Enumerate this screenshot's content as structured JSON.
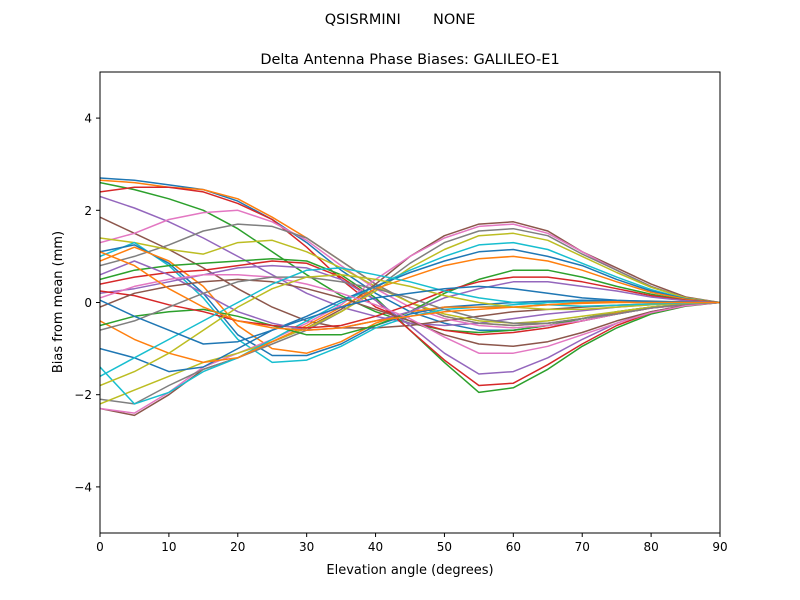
{
  "chart_data": {
    "type": "line",
    "suptitle": "QSISRMINI       NONE",
    "title": "Delta Antenna Phase Biases: GALILEO-E1",
    "xlabel": "Elevation angle (degrees)",
    "ylabel": "Bias from mean (mm)",
    "xlim": [
      0,
      90
    ],
    "ylim": [
      -5,
      5
    ],
    "xticks": [
      0,
      10,
      20,
      30,
      40,
      50,
      60,
      70,
      80,
      90
    ],
    "xtick_labels": [
      "0",
      "10",
      "20",
      "30",
      "40",
      "50",
      "60",
      "70",
      "80",
      "90"
    ],
    "yticks": [
      -4,
      -2,
      0,
      2,
      4
    ],
    "ytick_labels": [
      "−4",
      "−2",
      "0",
      "2",
      "4"
    ],
    "grid": false,
    "colors": [
      "#1f77b4",
      "#ff7f0e",
      "#2ca02c",
      "#d62728",
      "#9467bd",
      "#8c564b",
      "#e377c2",
      "#7f7f7f",
      "#bcbd22",
      "#17becf"
    ],
    "x": [
      0,
      5,
      10,
      15,
      20,
      25,
      30,
      35,
      40,
      45,
      50,
      55,
      60,
      65,
      70,
      75,
      80,
      85,
      90
    ],
    "series": [
      {
        "values": [
          2.7,
          2.65,
          2.55,
          2.45,
          2.2,
          1.8,
          1.3,
          0.7,
          0.2,
          -0.2,
          -0.45,
          -0.6,
          -0.6,
          -0.5,
          -0.4,
          -0.25,
          -0.12,
          -0.05,
          0
        ]
      },
      {
        "values": [
          2.65,
          2.6,
          2.5,
          2.45,
          2.25,
          1.85,
          1.4,
          0.9,
          0.4,
          0,
          -0.3,
          -0.45,
          -0.5,
          -0.45,
          -0.35,
          -0.22,
          -0.1,
          -0.04,
          0
        ]
      },
      {
        "values": [
          2.6,
          2.45,
          2.25,
          2.0,
          1.6,
          1.1,
          0.6,
          0.15,
          -0.2,
          -0.45,
          -0.6,
          -0.65,
          -0.6,
          -0.5,
          -0.35,
          -0.2,
          -0.1,
          -0.04,
          0
        ]
      },
      {
        "values": [
          2.4,
          2.5,
          2.5,
          2.4,
          2.15,
          1.8,
          1.2,
          0.5,
          -0.1,
          -0.4,
          -0.6,
          -0.7,
          -0.65,
          -0.55,
          -0.4,
          -0.25,
          -0.12,
          -0.05,
          0
        ]
      },
      {
        "values": [
          2.3,
          2.05,
          1.75,
          1.4,
          1.0,
          0.6,
          0.2,
          -0.1,
          -0.3,
          -0.45,
          -0.5,
          -0.45,
          -0.35,
          -0.25,
          -0.18,
          -0.1,
          -0.05,
          -0.02,
          0
        ]
      },
      {
        "values": [
          1.85,
          1.5,
          1.15,
          0.75,
          0.3,
          -0.1,
          -0.4,
          -0.55,
          -0.55,
          -0.5,
          -0.4,
          -0.3,
          -0.2,
          -0.15,
          -0.1,
          -0.06,
          -0.03,
          -0.01,
          0
        ]
      },
      {
        "values": [
          1.3,
          1.5,
          1.8,
          1.95,
          2.0,
          1.75,
          1.35,
          0.8,
          0.3,
          -0.1,
          -0.35,
          -0.5,
          -0.55,
          -0.5,
          -0.4,
          -0.25,
          -0.12,
          -0.05,
          0
        ]
      },
      {
        "values": [
          0.8,
          1.0,
          1.25,
          1.55,
          1.7,
          1.65,
          1.4,
          0.9,
          0.4,
          0,
          -0.3,
          -0.45,
          -0.5,
          -0.45,
          -0.35,
          -0.2,
          -0.1,
          -0.04,
          0
        ]
      },
      {
        "values": [
          1.4,
          1.3,
          1.15,
          1.05,
          1.3,
          1.35,
          1.1,
          0.75,
          0.35,
          0,
          -0.25,
          -0.4,
          -0.45,
          -0.4,
          -0.3,
          -0.2,
          -0.1,
          -0.04,
          0
        ]
      },
      {
        "values": [
          1.0,
          1.3,
          0.8,
          0.1,
          -0.8,
          -1.3,
          -1.25,
          -0.95,
          -0.55,
          -0.3,
          -0.15,
          -0.1,
          -0.05,
          0,
          0.02,
          0.03,
          0.02,
          0.01,
          0
        ]
      },
      {
        "values": [
          1.1,
          1.25,
          0.85,
          0.2,
          -0.7,
          -1.15,
          -1.15,
          -0.9,
          -0.5,
          -0.25,
          -0.1,
          -0.05,
          0,
          0.03,
          0.05,
          0.04,
          0.03,
          0.01,
          0
        ]
      },
      {
        "values": [
          0.9,
          1.2,
          0.9,
          0.35,
          -0.5,
          -1.0,
          -1.1,
          -0.85,
          -0.45,
          -0.2,
          -0.1,
          -0.1,
          -0.1,
          -0.05,
          0,
          0.02,
          0.02,
          0.01,
          0
        ]
      },
      {
        "values": [
          0.5,
          0.7,
          0.8,
          0.85,
          0.9,
          0.95,
          0.9,
          0.6,
          0.1,
          -0.6,
          -1.3,
          -1.95,
          -1.85,
          -1.45,
          -0.95,
          -0.55,
          -0.25,
          -0.08,
          0
        ]
      },
      {
        "values": [
          0.4,
          0.55,
          0.65,
          0.7,
          0.8,
          0.9,
          0.85,
          0.55,
          0.05,
          -0.6,
          -1.25,
          -1.8,
          -1.75,
          -1.35,
          -0.9,
          -0.5,
          -0.22,
          -0.07,
          0
        ]
      },
      {
        "values": [
          0.2,
          0.3,
          0.45,
          0.6,
          0.75,
          0.8,
          0.75,
          0.5,
          0.05,
          -0.5,
          -1.1,
          -1.55,
          -1.5,
          -1.2,
          -0.8,
          -0.45,
          -0.2,
          -0.06,
          0
        ]
      },
      {
        "values": [
          -2.3,
          -2.45,
          -2.0,
          -1.45,
          -1.2,
          -0.85,
          -0.55,
          -0.15,
          0.4,
          1.0,
          1.45,
          1.7,
          1.75,
          1.55,
          1.1,
          0.75,
          0.4,
          0.12,
          0
        ]
      },
      {
        "values": [
          -2.3,
          -2.4,
          -1.95,
          -1.4,
          -1.1,
          -0.8,
          -0.45,
          -0.05,
          0.5,
          1.0,
          1.4,
          1.65,
          1.7,
          1.5,
          1.1,
          0.7,
          0.35,
          0.1,
          0
        ]
      },
      {
        "values": [
          -2.1,
          -2.2,
          -1.8,
          -1.45,
          -1.2,
          -0.9,
          -0.6,
          -0.2,
          0.3,
          0.85,
          1.3,
          1.55,
          1.6,
          1.45,
          1.05,
          0.7,
          0.35,
          0.1,
          0
        ]
      },
      {
        "values": [
          -2.2,
          -1.9,
          -1.6,
          -1.3,
          -1.1,
          -0.85,
          -0.55,
          -0.2,
          0.25,
          0.75,
          1.15,
          1.45,
          1.5,
          1.35,
          1.0,
          0.65,
          0.33,
          0.1,
          0
        ]
      },
      {
        "values": [
          -1.4,
          -2.2,
          -1.95,
          -1.5,
          -1.2,
          -0.8,
          -0.4,
          0,
          0.35,
          0.7,
          1.0,
          1.25,
          1.3,
          1.15,
          0.85,
          0.55,
          0.28,
          0.08,
          0
        ]
      },
      {
        "values": [
          -1.0,
          -1.2,
          -1.5,
          -1.4,
          -1.0,
          -0.6,
          -0.3,
          0.05,
          0.35,
          0.65,
          0.9,
          1.1,
          1.15,
          1.0,
          0.8,
          0.5,
          0.25,
          0.08,
          0
        ]
      },
      {
        "values": [
          -0.4,
          -0.8,
          -1.1,
          -1.3,
          -1.2,
          -0.85,
          -0.5,
          -0.1,
          0.3,
          0.55,
          0.8,
          0.95,
          1.0,
          0.9,
          0.7,
          0.45,
          0.22,
          0.07,
          0
        ]
      },
      {
        "values": [
          -0.5,
          -0.3,
          -0.2,
          -0.15,
          -0.3,
          -0.5,
          -0.7,
          -0.7,
          -0.5,
          -0.2,
          0.2,
          0.5,
          0.7,
          0.7,
          0.55,
          0.35,
          0.18,
          0.05,
          0
        ]
      },
      {
        "values": [
          0.25,
          0.15,
          -0.05,
          -0.2,
          -0.4,
          -0.5,
          -0.55,
          -0.5,
          -0.3,
          -0.05,
          0.25,
          0.45,
          0.55,
          0.55,
          0.45,
          0.3,
          0.15,
          0.05,
          0
        ]
      },
      {
        "values": [
          0.6,
          0.9,
          0.6,
          0.2,
          -0.2,
          -0.45,
          -0.6,
          -0.55,
          -0.4,
          -0.2,
          0.1,
          0.3,
          0.45,
          0.45,
          0.35,
          0.25,
          0.12,
          0.04,
          0
        ]
      },
      {
        "values": [
          -0.1,
          0.2,
          0.35,
          0.45,
          0.5,
          0.45,
          0.3,
          0.1,
          -0.15,
          -0.4,
          -0.7,
          -0.9,
          -0.95,
          -0.85,
          -0.65,
          -0.4,
          -0.2,
          -0.06,
          0
        ]
      },
      {
        "values": [
          0.1,
          0.35,
          0.5,
          0.6,
          0.6,
          0.55,
          0.4,
          0.2,
          -0.05,
          -0.35,
          -0.75,
          -1.1,
          -1.1,
          -0.95,
          -0.7,
          -0.45,
          -0.22,
          -0.07,
          0
        ]
      },
      {
        "values": [
          -0.6,
          -0.4,
          -0.1,
          0.2,
          0.45,
          0.55,
          0.55,
          0.45,
          0.3,
          0.1,
          -0.15,
          -0.35,
          -0.45,
          -0.45,
          -0.35,
          -0.25,
          -0.12,
          -0.04,
          0
        ]
      },
      {
        "values": [
          -1.8,
          -1.5,
          -1.1,
          -0.6,
          -0.1,
          0.3,
          0.55,
          0.6,
          0.5,
          0.35,
          0.15,
          0,
          -0.1,
          -0.15,
          -0.15,
          -0.1,
          -0.05,
          -0.02,
          0
        ]
      },
      {
        "values": [
          -1.6,
          -1.2,
          -0.8,
          -0.4,
          0.0,
          0.4,
          0.7,
          0.75,
          0.6,
          0.45,
          0.25,
          0.1,
          0,
          -0.05,
          -0.08,
          -0.06,
          -0.03,
          -0.01,
          0
        ]
      },
      {
        "values": [
          0.05,
          -0.3,
          -0.6,
          -0.9,
          -0.85,
          -0.6,
          -0.35,
          -0.1,
          0.1,
          0.2,
          0.3,
          0.35,
          0.3,
          0.2,
          0.1,
          0.05,
          0.02,
          0.01,
          0
        ]
      },
      {
        "values": [
          1.1,
          0.8,
          0.3,
          -0.1,
          -0.4,
          -0.55,
          -0.6,
          -0.55,
          -0.4,
          -0.3,
          -0.2,
          -0.15,
          -0.1,
          -0.05,
          -0.02,
          0,
          0,
          0,
          0
        ]
      }
    ]
  }
}
